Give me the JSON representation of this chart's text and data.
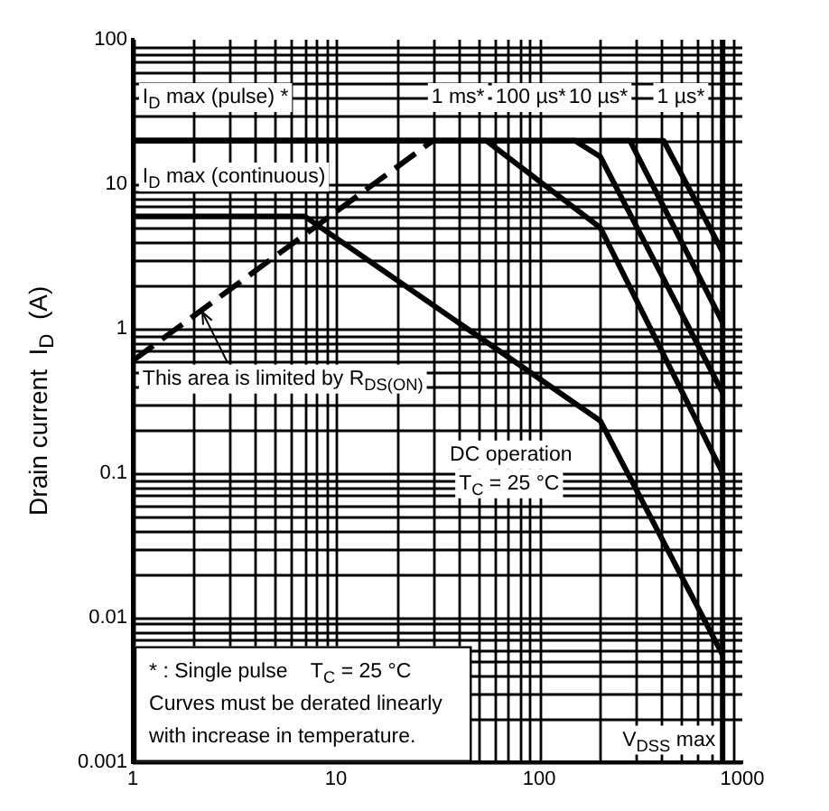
{
  "chart_data": {
    "type": "line",
    "ylabel": "Drain current  I$_{D}$  (A)",
    "log": "xy",
    "grid": true,
    "legend": false,
    "marker": "none",
    "line_style": "solid",
    "xlim": [
      1,
      1000
    ],
    "xticks": [
      1,
      10,
      100,
      1000
    ],
    "ylim": [
      0.001,
      100
    ],
    "yticks": [
      0.001,
      0.01,
      0.1,
      1,
      10,
      100
    ],
    "series": [
      {
        "color": "#000000",
        "x": [
          1,
          7,
          200,
          800
        ],
        "values": [
          6,
          6,
          0.23,
          0.0055
        ]
      },
      {
        "color": "#000000",
        "x": [
          1,
          55,
          200,
          800
        ],
        "values": [
          20,
          20,
          5,
          0.1
        ]
      },
      {
        "color": "#000000",
        "x": [
          1,
          150,
          200,
          800
        ],
        "values": [
          20,
          20,
          15.5,
          0.36
        ]
      },
      {
        "color": "#000000",
        "x": [
          1,
          280,
          800
        ],
        "values": [
          20,
          20,
          1.1
        ]
      },
      {
        "color": "#000000",
        "x": [
          1,
          410,
          800
        ],
        "values": [
          20,
          20,
          3.4
        ]
      },
      {
        "color": "#000000",
        "x": [
          1,
          30
        ],
        "values": [
          0.6,
          20
        ],
        "line_style": "dashed"
      }
    ],
    "ref_lines": [
      {
        "axis": "x",
        "value": 800,
        "label": "V$_{DSS}$ max"
      }
    ],
    "annotations": [
      "I$_{D}$ max (pulse) *",
      "I$_{D}$ max (continuous)",
      "1 ms*",
      "100 µs*",
      "10 µs*",
      "1 µs*",
      {
        "text": "This area is limited by R$_{DS(ON)}$",
        "x": 2.2,
        "y": 1.3
      },
      "DC operation",
      "T$_{C}$ = 25 °C",
      "* : Single pulse    T$_{C}$ = 25 °C",
      "Curves must be derated linearly with increase in temperature."
    ]
  }
}
